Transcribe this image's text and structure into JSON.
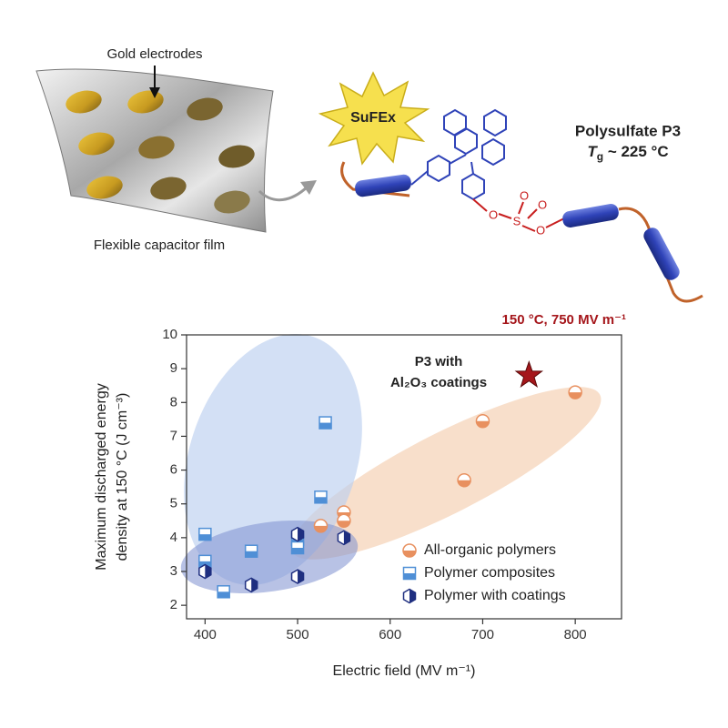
{
  "illustration": {
    "electrode_label": "Gold electrodes",
    "film_label": "Flexible capacitor film",
    "reaction": "SuFEx",
    "polymer_name": "Polysulfate P3",
    "glass_transition": {
      "symbol": "T",
      "subscript": "g",
      "text": " ~ 225 °C"
    },
    "atoms": [
      "O",
      "S",
      "O",
      "O"
    ]
  },
  "chart_data": {
    "type": "scatter",
    "x_label": "Electric field (MV m⁻¹)",
    "y_label": [
      "Maximum discharged energy",
      "density at 150 °C (J cm⁻³)"
    ],
    "annotations": [
      "150 °C, 750 MV m⁻¹",
      "P3 with",
      "Al₂O₃ coatings"
    ],
    "xlim": [
      380,
      850
    ],
    "ylim": [
      1.6,
      10
    ],
    "xticks": [
      400,
      500,
      600,
      700,
      800
    ],
    "yticks": [
      2,
      3,
      4,
      5,
      6,
      7,
      8,
      9,
      10
    ],
    "legend": "lower right",
    "series": [
      {
        "name": "All-organic polymers",
        "color": "#e8905f",
        "marker": "half-circle",
        "x": [
          525,
          550,
          550,
          680,
          700,
          800
        ],
        "values": [
          4.35,
          4.75,
          4.5,
          5.7,
          7.45,
          8.3
        ]
      },
      {
        "name": "Polymer composites",
        "color": "#4f8fd6",
        "marker": "half-square",
        "x": [
          400,
          400,
          420,
          450,
          500,
          500,
          525,
          530
        ],
        "values": [
          4.1,
          3.3,
          2.4,
          3.6,
          3.95,
          3.7,
          5.2,
          7.4
        ]
      },
      {
        "name": "Polymer with coatings",
        "color": "#1f2f80",
        "marker": "half-hexagon",
        "x": [
          400,
          450,
          500,
          500,
          550
        ],
        "values": [
          3.0,
          2.6,
          2.85,
          4.1,
          4.0
        ]
      }
    ],
    "highlight": {
      "x": 750,
      "y": 8.8,
      "color": "#a5161b"
    }
  }
}
